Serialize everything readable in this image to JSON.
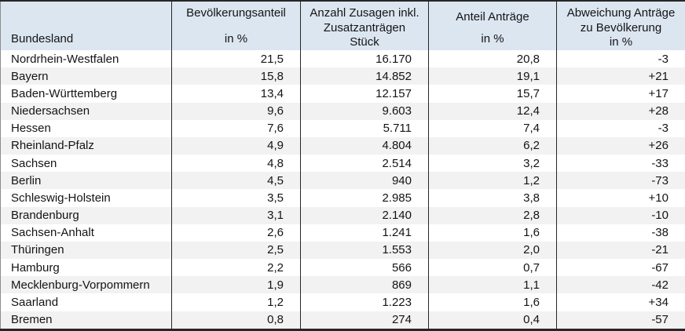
{
  "chart_data": {
    "type": "table",
    "title": "",
    "columns": [
      {
        "label": "Bundesland",
        "unit": ""
      },
      {
        "label": "Bevölkerungsanteil",
        "unit": "in %"
      },
      {
        "label": "Anzahl Zusagen inkl. Zusatzanträgen",
        "unit": "Stück"
      },
      {
        "label": "Anteil Anträge",
        "unit": "in %"
      },
      {
        "label": "Abweichung Anträge zu Bevölkerung",
        "unit": "in %"
      }
    ],
    "rows": [
      [
        "Nordrhein-Westfalen",
        "21,5",
        "16.170",
        "20,8",
        "-3"
      ],
      [
        "Bayern",
        "15,8",
        "14.852",
        "19,1",
        "+21"
      ],
      [
        "Baden-Württemberg",
        "13,4",
        "12.157",
        "15,7",
        "+17"
      ],
      [
        "Niedersachsen",
        "9,6",
        "9.603",
        "12,4",
        "+28"
      ],
      [
        "Hessen",
        "7,6",
        "5.711",
        "7,4",
        "-3"
      ],
      [
        "Rheinland-Pfalz",
        "4,9",
        "4.804",
        "6,2",
        "+26"
      ],
      [
        "Sachsen",
        "4,8",
        "2.514",
        "3,2",
        "-33"
      ],
      [
        "Berlin",
        "4,5",
        "940",
        "1,2",
        "-73"
      ],
      [
        "Schleswig-Holstein",
        "3,5",
        "2.985",
        "3,8",
        "+10"
      ],
      [
        "Brandenburg",
        "3,1",
        "2.140",
        "2,8",
        "-10"
      ],
      [
        "Sachsen-Anhalt",
        "2,6",
        "1.241",
        "1,6",
        "-38"
      ],
      [
        "Thüringen",
        "2,5",
        "1.553",
        "2,0",
        "-21"
      ],
      [
        "Hamburg",
        "2,2",
        "566",
        "0,7",
        "-67"
      ],
      [
        "Mecklenburg-Vorpommern",
        "1,9",
        "869",
        "1,1",
        "-42"
      ],
      [
        "Saarland",
        "1,2",
        "1.223",
        "1,6",
        "+34"
      ],
      [
        "Bremen",
        "0,8",
        "274",
        "0,4",
        "-57"
      ]
    ],
    "layout": {
      "striped": true,
      "legend": "none",
      "grid": "column-separators-only"
    }
  },
  "colors": {
    "header_bg": "#dce6f1",
    "stripe_bg": "#f2f2f2",
    "border_dark": "#262626",
    "text": "#141414"
  }
}
